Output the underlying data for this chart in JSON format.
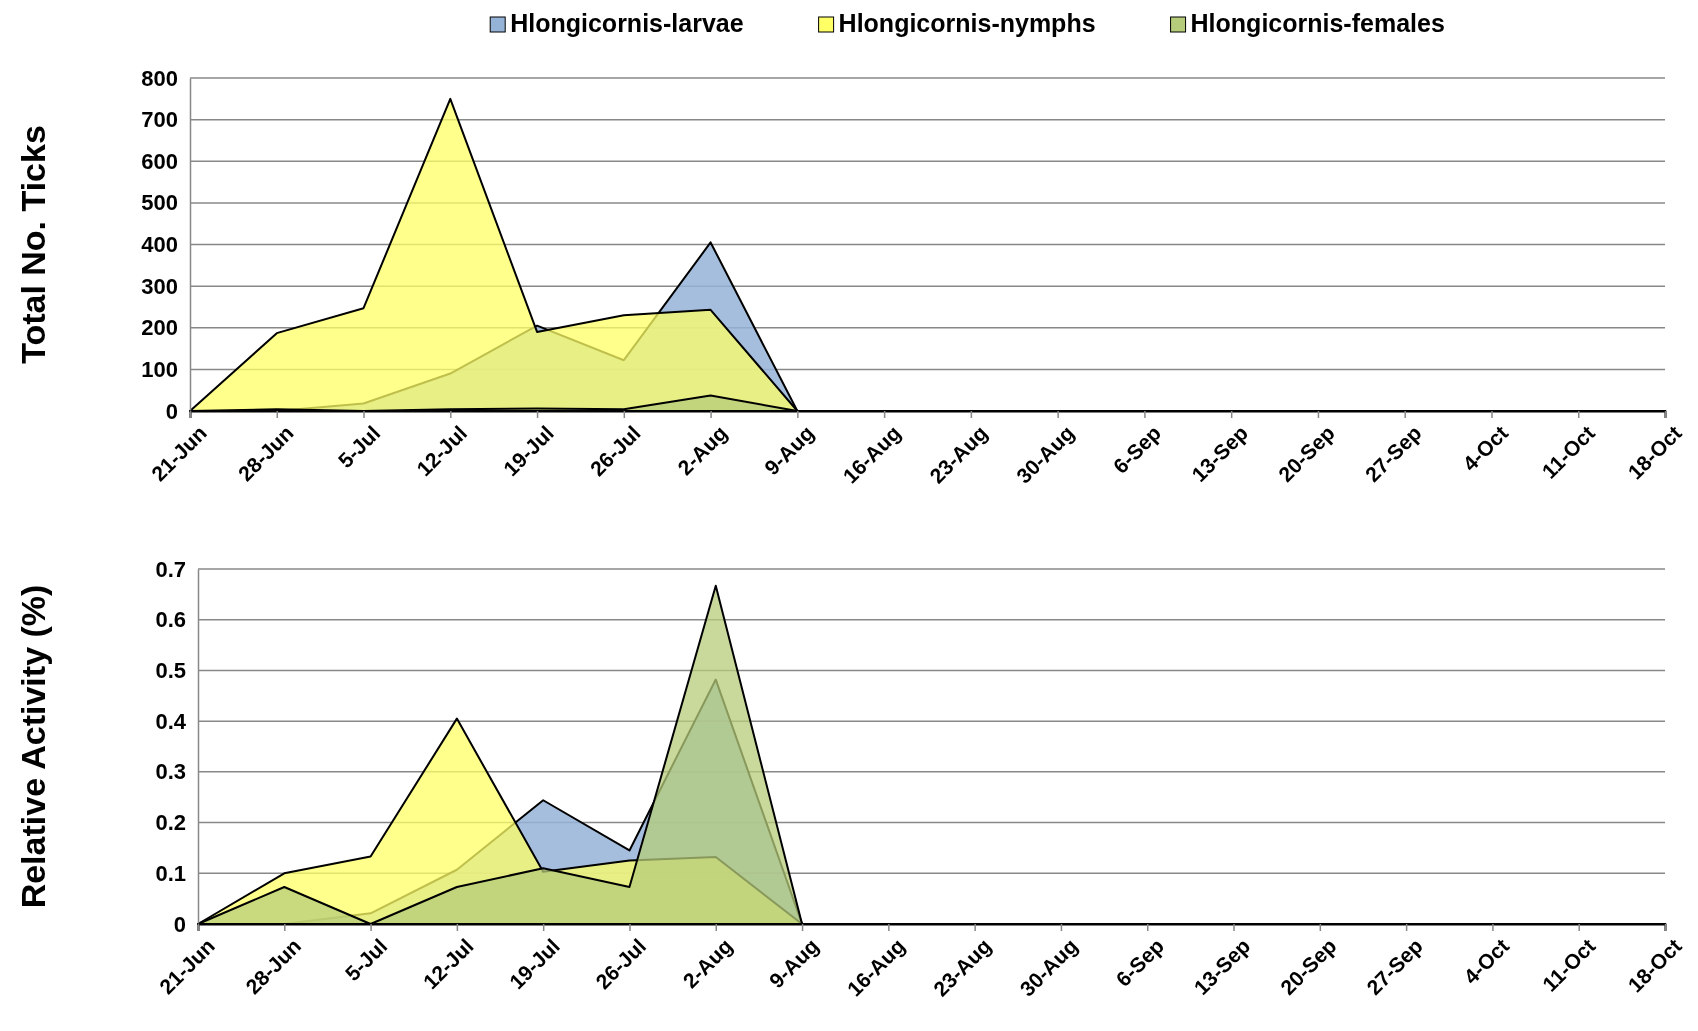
{
  "chart_data": [
    {
      "type": "area",
      "ylabel": "Total No. Ticks",
      "legend": "top",
      "grid": "y",
      "ylim": [
        0,
        800
      ],
      "yticks": [
        0,
        100,
        200,
        300,
        400,
        500,
        600,
        700,
        800
      ],
      "categories": [
        "21-Jun",
        "28-Jun",
        "5-Jul",
        "12-Jul",
        "19-Jul",
        "26-Jul",
        "2-Aug",
        "9-Aug",
        "16-Aug",
        "23-Aug",
        "30-Aug",
        "6-Sep",
        "13-Sep",
        "20-Sep",
        "27-Sep",
        "4-Oct",
        "11-Oct",
        "18-Oct"
      ],
      "series": [
        {
          "name": "Hlongicornis-larvae",
          "color": "#95b3d7",
          "values": [
            0,
            0,
            18,
            90,
            205,
            122,
            405,
            0,
            0,
            0,
            0,
            0,
            0,
            0,
            0,
            0,
            0,
            0
          ]
        },
        {
          "name": "Hlongicornis-nymphs",
          "color": "#ffff66",
          "values": [
            0,
            187,
            247,
            750,
            190,
            230,
            243,
            0,
            0,
            0,
            0,
            0,
            0,
            0,
            0,
            0,
            0,
            0
          ]
        },
        {
          "name": "Hlongicornis-females",
          "color": "#b5cc7a",
          "values": [
            0,
            4,
            0,
            4,
            6,
            4,
            37,
            0,
            0,
            0,
            0,
            0,
            0,
            0,
            0,
            0,
            0,
            0
          ]
        }
      ]
    },
    {
      "type": "area",
      "ylabel": "Relative Activity (%)",
      "grid": "y",
      "ylim": [
        0,
        0.7
      ],
      "yticks": [
        0,
        0.1,
        0.2,
        0.3,
        0.4,
        0.5,
        0.6,
        0.7
      ],
      "categories": [
        "21-Jun",
        "28-Jun",
        "5-Jul",
        "12-Jul",
        "19-Jul",
        "26-Jul",
        "2-Aug",
        "9-Aug",
        "16-Aug",
        "23-Aug",
        "30-Aug",
        "6-Sep",
        "13-Sep",
        "20-Sep",
        "27-Sep",
        "4-Oct",
        "11-Oct",
        "18-Oct"
      ],
      "series": [
        {
          "color": "#95b3d7",
          "values": [
            0,
            0,
            0.021,
            0.107,
            0.244,
            0.145,
            0.482,
            0,
            0,
            0,
            0,
            0,
            0,
            0,
            0,
            0,
            0,
            0
          ]
        },
        {
          "color": "#ffff66",
          "values": [
            0,
            0.1,
            0.133,
            0.405,
            0.103,
            0.125,
            0.132,
            0,
            0,
            0,
            0,
            0,
            0,
            0,
            0,
            0,
            0,
            0
          ]
        },
        {
          "color": "#b5cc7a",
          "values": [
            0,
            0.073,
            0,
            0.073,
            0.11,
            0.073,
            0.667,
            0,
            0,
            0,
            0,
            0,
            0,
            0,
            0,
            0,
            0,
            0
          ]
        }
      ]
    }
  ]
}
